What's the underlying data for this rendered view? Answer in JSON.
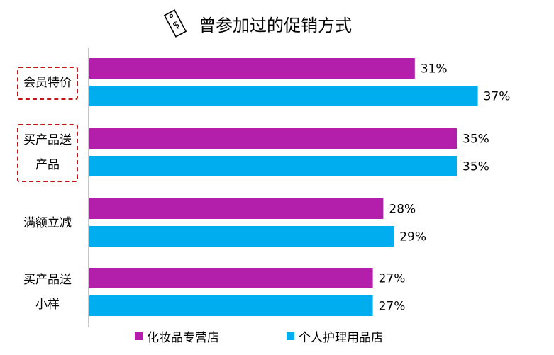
{
  "colors": {
    "cosmetics": "#b31fab",
    "personal_care": "#00adef",
    "highlight": "#c0151b"
  },
  "title_icon": "price-tag-dollar-icon",
  "chart_data": {
    "type": "bar",
    "orientation": "horizontal",
    "title": "曾参加过的促销方式",
    "categories": [
      {
        "lines": [
          "会员特价"
        ],
        "highlighted": true
      },
      {
        "lines": [
          "买产品送",
          "产品"
        ],
        "highlighted": true
      },
      {
        "lines": [
          "满额立减"
        ],
        "highlighted": false
      },
      {
        "lines": [
          "买产品送",
          "小样"
        ],
        "highlighted": false
      }
    ],
    "series": [
      {
        "name": "化妆品专营店",
        "values": [
          31,
          35,
          28,
          27
        ],
        "labels": [
          "31%",
          "35%",
          "28%",
          "27%"
        ]
      },
      {
        "name": "个人护理用品店",
        "values": [
          37,
          35,
          29,
          27
        ],
        "labels": [
          "37%",
          "35%",
          "29%",
          "27%"
        ]
      }
    ],
    "xlim": [
      0,
      40
    ],
    "grid": false,
    "legend_position": "bottom"
  }
}
